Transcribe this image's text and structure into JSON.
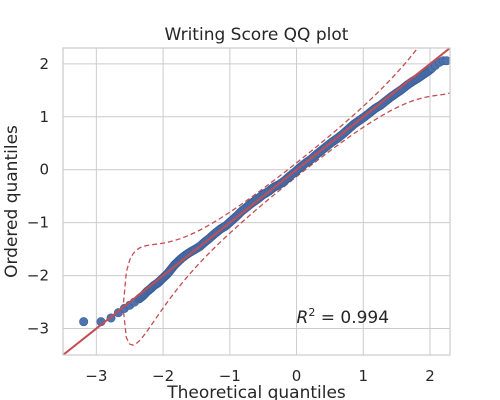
{
  "chart_data": {
    "type": "scatter",
    "title": "Writing Score QQ plot",
    "xlabel": "Theoretical quantiles",
    "ylabel": "Ordered quantiles",
    "xlim": [
      -3.5,
      2.3
    ],
    "ylim": [
      -3.5,
      2.3
    ],
    "xticks": [
      -3,
      -2,
      -1,
      0,
      1,
      2
    ],
    "yticks": [
      -3,
      -2,
      -1,
      0,
      1,
      2
    ],
    "xtick_labels": [
      "−3",
      "−2",
      "−1",
      "0",
      "1",
      "2"
    ],
    "ytick_labels": [
      "−3",
      "−2",
      "−1",
      "0",
      "1",
      "2"
    ],
    "grid": true,
    "annotation": {
      "prefix": "R",
      "sup": "2",
      "suffix": " = 0.994",
      "x": 0.0,
      "y": -2.9
    },
    "reference_line_45deg": {
      "color": "#7f7f7f"
    },
    "fit_line": {
      "slope": 1.0,
      "intercept": 0.0,
      "color": "#c44e52"
    },
    "confidence_band_color": "#c44e52",
    "series": [
      {
        "marker_color": "#4c72b0",
        "x": [
          -3.19,
          -2.93,
          -2.78,
          -2.67,
          -2.58,
          -2.5,
          -2.43,
          -2.36,
          -2.3,
          -2.24,
          -2.19,
          -2.14,
          -2.08,
          -2.03,
          -1.98,
          -1.93,
          -1.88,
          -1.83,
          -1.78,
          -1.73,
          -1.67,
          -1.6,
          -1.53,
          -1.45,
          -1.38,
          -1.3,
          -1.22,
          -1.14,
          -1.06,
          -0.98,
          -0.9,
          -0.82,
          -0.74,
          -0.66,
          -0.58,
          -0.5,
          -0.42,
          -0.34,
          -0.26,
          -0.18,
          -0.1,
          -0.02,
          0.06,
          0.14,
          0.22,
          0.3,
          0.38,
          0.46,
          0.54,
          0.62,
          0.7,
          0.78,
          0.86,
          0.94,
          1.02,
          1.1,
          1.18,
          1.26,
          1.34,
          1.42,
          1.5,
          1.58,
          1.66,
          1.74,
          1.82,
          1.9,
          1.97,
          2.03,
          2.08,
          2.14,
          2.2,
          2.25
        ],
        "y": [
          -2.87,
          -2.87,
          -2.8,
          -2.7,
          -2.62,
          -2.56,
          -2.5,
          -2.44,
          -2.38,
          -2.3,
          -2.25,
          -2.19,
          -2.14,
          -2.08,
          -2.02,
          -1.96,
          -1.88,
          -1.8,
          -1.74,
          -1.68,
          -1.62,
          -1.56,
          -1.51,
          -1.45,
          -1.37,
          -1.29,
          -1.2,
          -1.12,
          -1.06,
          -0.97,
          -0.88,
          -0.78,
          -0.7,
          -0.62,
          -0.55,
          -0.47,
          -0.41,
          -0.33,
          -0.28,
          -0.21,
          -0.12,
          -0.04,
          0.05,
          0.13,
          0.2,
          0.29,
          0.37,
          0.45,
          0.53,
          0.6,
          0.68,
          0.77,
          0.86,
          0.93,
          1.0,
          1.08,
          1.16,
          1.22,
          1.3,
          1.38,
          1.45,
          1.52,
          1.6,
          1.67,
          1.73,
          1.8,
          1.86,
          1.92,
          1.97,
          2.03,
          2.06,
          2.06
        ]
      }
    ]
  }
}
